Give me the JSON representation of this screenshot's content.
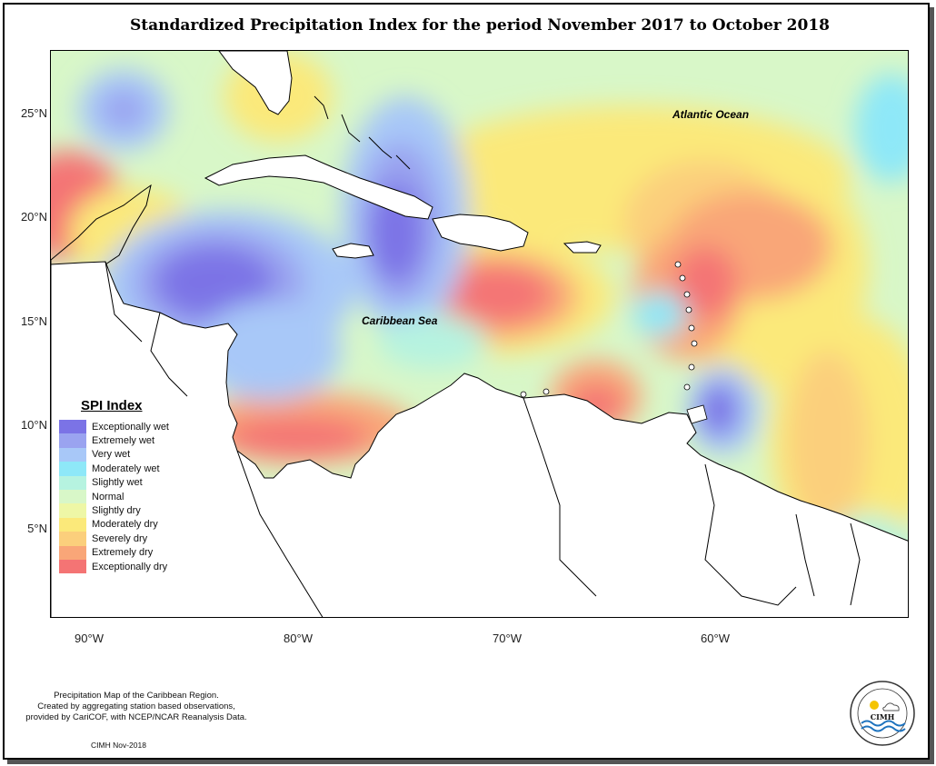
{
  "title": "Standardized Precipitation Index for the period November 2017 to October 2018",
  "map": {
    "extent": {
      "lon": [
        -92,
        -51
      ],
      "lat": [
        1.5,
        28.5
      ]
    },
    "y_axis_labels": [
      "25°N",
      "20°N",
      "15°N",
      "10°N",
      "5°N"
    ],
    "x_axis_labels": [
      "90°W",
      "80°W",
      "70°W",
      "60°W"
    ],
    "labels": {
      "atlantic": "Atlantic Ocean",
      "caribbean": "Caribbean Sea"
    }
  },
  "legend": {
    "title": "SPI Index",
    "items": [
      {
        "label": "Exceptionally wet",
        "color": "#7b73e6"
      },
      {
        "label": "Extremely wet",
        "color": "#9aa3f0"
      },
      {
        "label": "Very wet",
        "color": "#a8c8f8"
      },
      {
        "label": "Moderately wet",
        "color": "#8ee8f8"
      },
      {
        "label": "Slightly wet",
        "color": "#b6f3e0"
      },
      {
        "label": "Normal",
        "color": "#d8f7c8"
      },
      {
        "label": "Slightly dry",
        "color": "#eef7a6"
      },
      {
        "label": "Moderately dry",
        "color": "#fbe97a"
      },
      {
        "label": "Severely dry",
        "color": "#fbcf7c"
      },
      {
        "label": "Extremely dry",
        "color": "#f9a678"
      },
      {
        "label": "Exceptionally dry",
        "color": "#f47474"
      }
    ]
  },
  "footnote": {
    "line1": "Precipitation Map of the Caribbean Region.",
    "line2": "Created by aggregating station based observations,",
    "line3": "provided by CariCOF, with NCEP/NCAR Reanalysis Data."
  },
  "credit": "CIMH Nov-2018",
  "logo": {
    "text": "CIMH",
    "icon": "cimh-logo-icon"
  }
}
